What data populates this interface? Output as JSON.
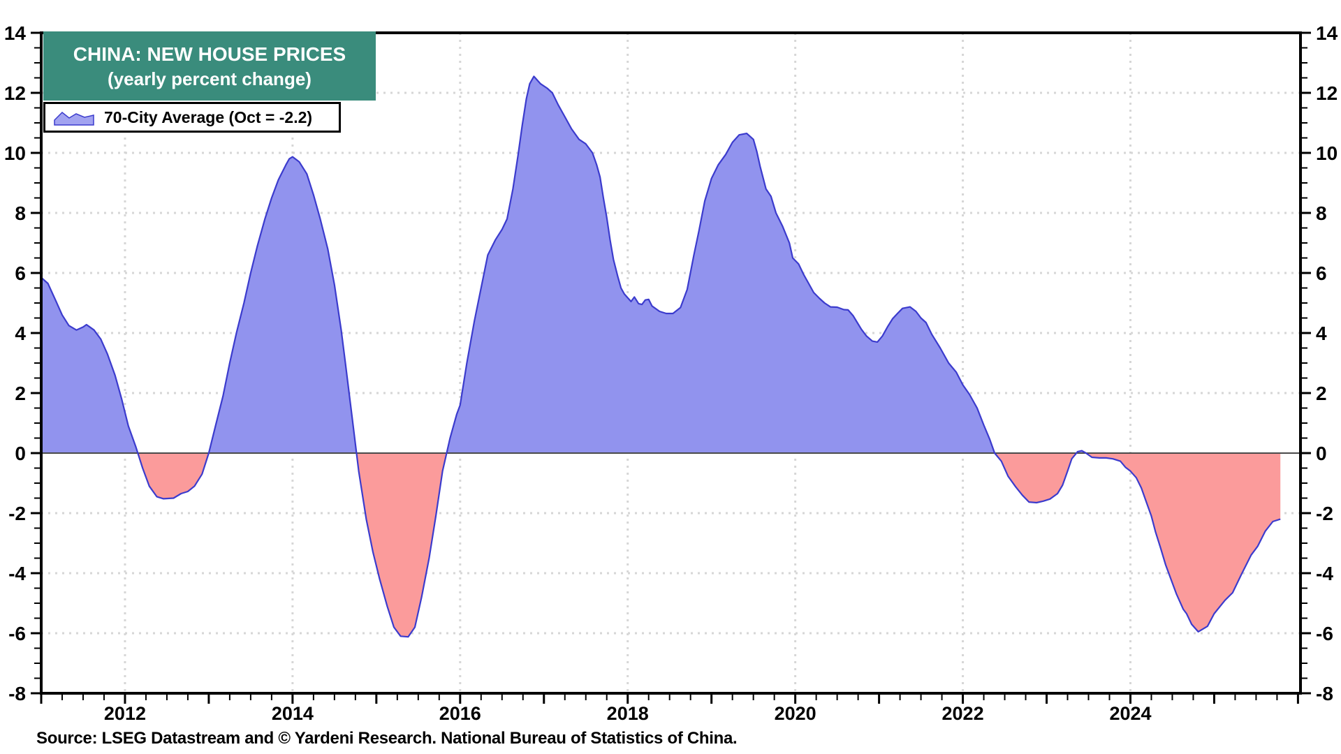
{
  "header": {
    "title_line1": "CHINA: NEW HOUSE PRICES",
    "title_line2": "(yearly percent change)",
    "title_bg_color": "#3A8C7C"
  },
  "legend": {
    "label": "70-City Average (Oct = -2.2)"
  },
  "footer": {
    "source": "Source: LSEG Datastream and © Yardeni Research. National Bureau of Statistics of China."
  },
  "chart_data": {
    "type": "area",
    "title": "CHINA: NEW HOUSE PRICES (yearly percent change)",
    "xlabel": "",
    "ylabel": "yearly percent change",
    "baseline": 0,
    "legend_position": "top-left",
    "grid": "dotted, at even years and even values",
    "x_axis": {
      "range": [
        2011.0,
        2026.03
      ],
      "major_tick_step_years": 1,
      "minor_tick_step_years": 0.25,
      "labeled_years": [
        2012,
        2014,
        2016,
        2018,
        2020,
        2022,
        2024
      ],
      "gridline_years": [
        2012,
        2014,
        2016,
        2018,
        2020,
        2022,
        2024
      ]
    },
    "y_axis": {
      "range": [
        -8,
        14
      ],
      "major_tick_step": 2,
      "minor_tick_step": 0.5,
      "labels": [
        14,
        12,
        10,
        8,
        6,
        4,
        2,
        0,
        -2,
        -4,
        -6,
        -8
      ],
      "gridline_values": [
        12,
        10,
        8,
        6,
        4,
        2,
        -2,
        -4,
        -6
      ],
      "labels_on_both_sides": true
    },
    "colors": {
      "positive_fill": "#9193EE",
      "negative_fill": "#FB9B9B",
      "line": "#3B3BCD",
      "grid": "#D6D6D6",
      "zero_line": "#4A4A4A",
      "frame": "#000000",
      "title_bg": "#3A8C7C"
    },
    "series": [
      {
        "name": "70-City Average",
        "last_point_label": "Oct = -2.2",
        "points": [
          [
            2011.0,
            5.85
          ],
          [
            2011.08,
            5.65
          ],
          [
            2011.17,
            5.1
          ],
          [
            2011.25,
            4.6
          ],
          [
            2011.33,
            4.25
          ],
          [
            2011.42,
            4.1
          ],
          [
            2011.5,
            4.2
          ],
          [
            2011.54,
            4.28
          ],
          [
            2011.63,
            4.1
          ],
          [
            2011.71,
            3.8
          ],
          [
            2011.79,
            3.3
          ],
          [
            2011.88,
            2.6
          ],
          [
            2011.96,
            1.8
          ],
          [
            2012.04,
            0.9
          ],
          [
            2012.13,
            0.2
          ],
          [
            2012.21,
            -0.5
          ],
          [
            2012.29,
            -1.1
          ],
          [
            2012.38,
            -1.45
          ],
          [
            2012.46,
            -1.52
          ],
          [
            2012.58,
            -1.5
          ],
          [
            2012.67,
            -1.35
          ],
          [
            2012.75,
            -1.28
          ],
          [
            2012.83,
            -1.1
          ],
          [
            2012.92,
            -0.7
          ],
          [
            2013.0,
            0.0
          ],
          [
            2013.08,
            0.9
          ],
          [
            2013.17,
            1.9
          ],
          [
            2013.25,
            3.0
          ],
          [
            2013.33,
            4.0
          ],
          [
            2013.42,
            5.0
          ],
          [
            2013.5,
            6.0
          ],
          [
            2013.58,
            6.9
          ],
          [
            2013.67,
            7.8
          ],
          [
            2013.75,
            8.5
          ],
          [
            2013.83,
            9.1
          ],
          [
            2013.92,
            9.6
          ],
          [
            2013.96,
            9.8
          ],
          [
            2014.0,
            9.87
          ],
          [
            2014.08,
            9.7
          ],
          [
            2014.17,
            9.3
          ],
          [
            2014.25,
            8.6
          ],
          [
            2014.33,
            7.8
          ],
          [
            2014.42,
            6.8
          ],
          [
            2014.5,
            5.6
          ],
          [
            2014.58,
            4.1
          ],
          [
            2014.63,
            3.0
          ],
          [
            2014.71,
            1.2
          ],
          [
            2014.79,
            -0.6
          ],
          [
            2014.88,
            -2.2
          ],
          [
            2014.96,
            -3.3
          ],
          [
            2015.04,
            -4.2
          ],
          [
            2015.13,
            -5.1
          ],
          [
            2015.21,
            -5.8
          ],
          [
            2015.29,
            -6.1
          ],
          [
            2015.38,
            -6.12
          ],
          [
            2015.46,
            -5.8
          ],
          [
            2015.54,
            -4.8
          ],
          [
            2015.63,
            -3.5
          ],
          [
            2015.71,
            -2.1
          ],
          [
            2015.79,
            -0.6
          ],
          [
            2015.88,
            0.5
          ],
          [
            2015.96,
            1.3
          ],
          [
            2016.0,
            1.6
          ],
          [
            2016.08,
            3.0
          ],
          [
            2016.17,
            4.4
          ],
          [
            2016.25,
            5.5
          ],
          [
            2016.33,
            6.6
          ],
          [
            2016.42,
            7.1
          ],
          [
            2016.5,
            7.45
          ],
          [
            2016.56,
            7.8
          ],
          [
            2016.63,
            8.8
          ],
          [
            2016.69,
            9.9
          ],
          [
            2016.74,
            10.9
          ],
          [
            2016.79,
            11.8
          ],
          [
            2016.83,
            12.3
          ],
          [
            2016.88,
            12.55
          ],
          [
            2016.96,
            12.3
          ],
          [
            2017.04,
            12.15
          ],
          [
            2017.1,
            12.0
          ],
          [
            2017.17,
            11.6
          ],
          [
            2017.25,
            11.2
          ],
          [
            2017.33,
            10.8
          ],
          [
            2017.42,
            10.45
          ],
          [
            2017.5,
            10.3
          ],
          [
            2017.58,
            10.0
          ],
          [
            2017.63,
            9.6
          ],
          [
            2017.67,
            9.2
          ],
          [
            2017.71,
            8.5
          ],
          [
            2017.75,
            7.85
          ],
          [
            2017.79,
            7.1
          ],
          [
            2017.83,
            6.45
          ],
          [
            2017.88,
            5.9
          ],
          [
            2017.92,
            5.5
          ],
          [
            2017.96,
            5.3
          ],
          [
            2018.04,
            5.05
          ],
          [
            2018.08,
            5.2
          ],
          [
            2018.13,
            4.98
          ],
          [
            2018.17,
            4.95
          ],
          [
            2018.21,
            5.1
          ],
          [
            2018.25,
            5.12
          ],
          [
            2018.29,
            4.9
          ],
          [
            2018.38,
            4.72
          ],
          [
            2018.46,
            4.65
          ],
          [
            2018.54,
            4.65
          ],
          [
            2018.63,
            4.85
          ],
          [
            2018.71,
            5.45
          ],
          [
            2018.79,
            6.6
          ],
          [
            2018.85,
            7.4
          ],
          [
            2018.92,
            8.4
          ],
          [
            2019.0,
            9.15
          ],
          [
            2019.08,
            9.6
          ],
          [
            2019.17,
            9.95
          ],
          [
            2019.25,
            10.35
          ],
          [
            2019.33,
            10.6
          ],
          [
            2019.42,
            10.65
          ],
          [
            2019.5,
            10.45
          ],
          [
            2019.54,
            10.05
          ],
          [
            2019.58,
            9.55
          ],
          [
            2019.65,
            8.8
          ],
          [
            2019.71,
            8.55
          ],
          [
            2019.77,
            8.0
          ],
          [
            2019.85,
            7.55
          ],
          [
            2019.93,
            7.0
          ],
          [
            2019.97,
            6.5
          ],
          [
            2020.04,
            6.3
          ],
          [
            2020.1,
            5.95
          ],
          [
            2020.16,
            5.65
          ],
          [
            2020.22,
            5.35
          ],
          [
            2020.29,
            5.15
          ],
          [
            2020.35,
            5.0
          ],
          [
            2020.42,
            4.87
          ],
          [
            2020.5,
            4.86
          ],
          [
            2020.58,
            4.78
          ],
          [
            2020.63,
            4.77
          ],
          [
            2020.69,
            4.58
          ],
          [
            2020.74,
            4.35
          ],
          [
            2020.79,
            4.12
          ],
          [
            2020.85,
            3.9
          ],
          [
            2020.92,
            3.73
          ],
          [
            2020.98,
            3.7
          ],
          [
            2021.04,
            3.9
          ],
          [
            2021.1,
            4.2
          ],
          [
            2021.16,
            4.47
          ],
          [
            2021.22,
            4.65
          ],
          [
            2021.28,
            4.82
          ],
          [
            2021.37,
            4.87
          ],
          [
            2021.44,
            4.72
          ],
          [
            2021.5,
            4.5
          ],
          [
            2021.56,
            4.35
          ],
          [
            2021.63,
            3.95
          ],
          [
            2021.73,
            3.5
          ],
          [
            2021.83,
            3.0
          ],
          [
            2021.92,
            2.7
          ],
          [
            2022.0,
            2.27
          ],
          [
            2022.08,
            1.95
          ],
          [
            2022.17,
            1.5
          ],
          [
            2022.25,
            0.93
          ],
          [
            2022.32,
            0.47
          ],
          [
            2022.38,
            0.0
          ],
          [
            2022.46,
            -0.27
          ],
          [
            2022.54,
            -0.77
          ],
          [
            2022.63,
            -1.12
          ],
          [
            2022.71,
            -1.4
          ],
          [
            2022.79,
            -1.63
          ],
          [
            2022.88,
            -1.65
          ],
          [
            2022.96,
            -1.6
          ],
          [
            2023.04,
            -1.53
          ],
          [
            2023.13,
            -1.35
          ],
          [
            2023.19,
            -1.07
          ],
          [
            2023.25,
            -0.6
          ],
          [
            2023.3,
            -0.19
          ],
          [
            2023.37,
            0.05
          ],
          [
            2023.42,
            0.08
          ],
          [
            2023.47,
            0.0
          ],
          [
            2023.54,
            -0.14
          ],
          [
            2023.63,
            -0.16
          ],
          [
            2023.71,
            -0.16
          ],
          [
            2023.79,
            -0.19
          ],
          [
            2023.88,
            -0.27
          ],
          [
            2023.94,
            -0.47
          ],
          [
            2024.0,
            -0.6
          ],
          [
            2024.07,
            -0.82
          ],
          [
            2024.13,
            -1.16
          ],
          [
            2024.19,
            -1.63
          ],
          [
            2024.25,
            -2.1
          ],
          [
            2024.3,
            -2.63
          ],
          [
            2024.36,
            -3.16
          ],
          [
            2024.42,
            -3.72
          ],
          [
            2024.47,
            -4.1
          ],
          [
            2024.55,
            -4.7
          ],
          [
            2024.63,
            -5.2
          ],
          [
            2024.67,
            -5.35
          ],
          [
            2024.73,
            -5.7
          ],
          [
            2024.81,
            -5.95
          ],
          [
            2024.92,
            -5.77
          ],
          [
            2025.0,
            -5.35
          ],
          [
            2025.13,
            -4.9
          ],
          [
            2025.22,
            -4.65
          ],
          [
            2025.32,
            -4.07
          ],
          [
            2025.44,
            -3.4
          ],
          [
            2025.52,
            -3.1
          ],
          [
            2025.61,
            -2.6
          ],
          [
            2025.7,
            -2.28
          ],
          [
            2025.79,
            -2.2
          ]
        ]
      }
    ]
  }
}
